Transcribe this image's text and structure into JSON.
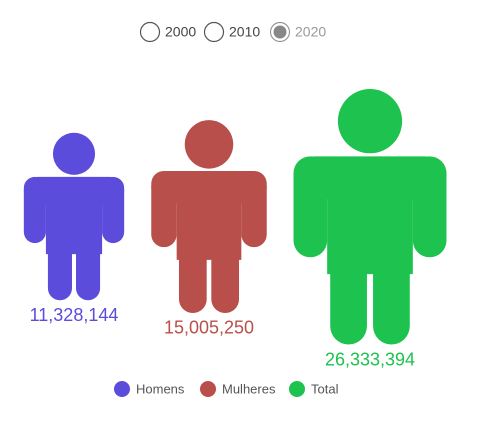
{
  "controls": {
    "options": [
      "2000",
      "2010",
      "2020"
    ],
    "selected": 2
  },
  "chart_data": {
    "type": "pictorial",
    "scale": "area",
    "series": [
      {
        "name": "Homens",
        "color": "#5b4cdb",
        "values": [
          11328144
        ],
        "value_labels": [
          "11,328,144"
        ]
      },
      {
        "name": "Mulheres",
        "color": "#b84f4a",
        "values": [
          15005250
        ],
        "value_labels": [
          "15,005,250"
        ]
      },
      {
        "name": "Total",
        "color": "#1dc24f",
        "values": [
          26333394
        ],
        "value_labels": [
          "26,333,394"
        ]
      }
    ]
  }
}
